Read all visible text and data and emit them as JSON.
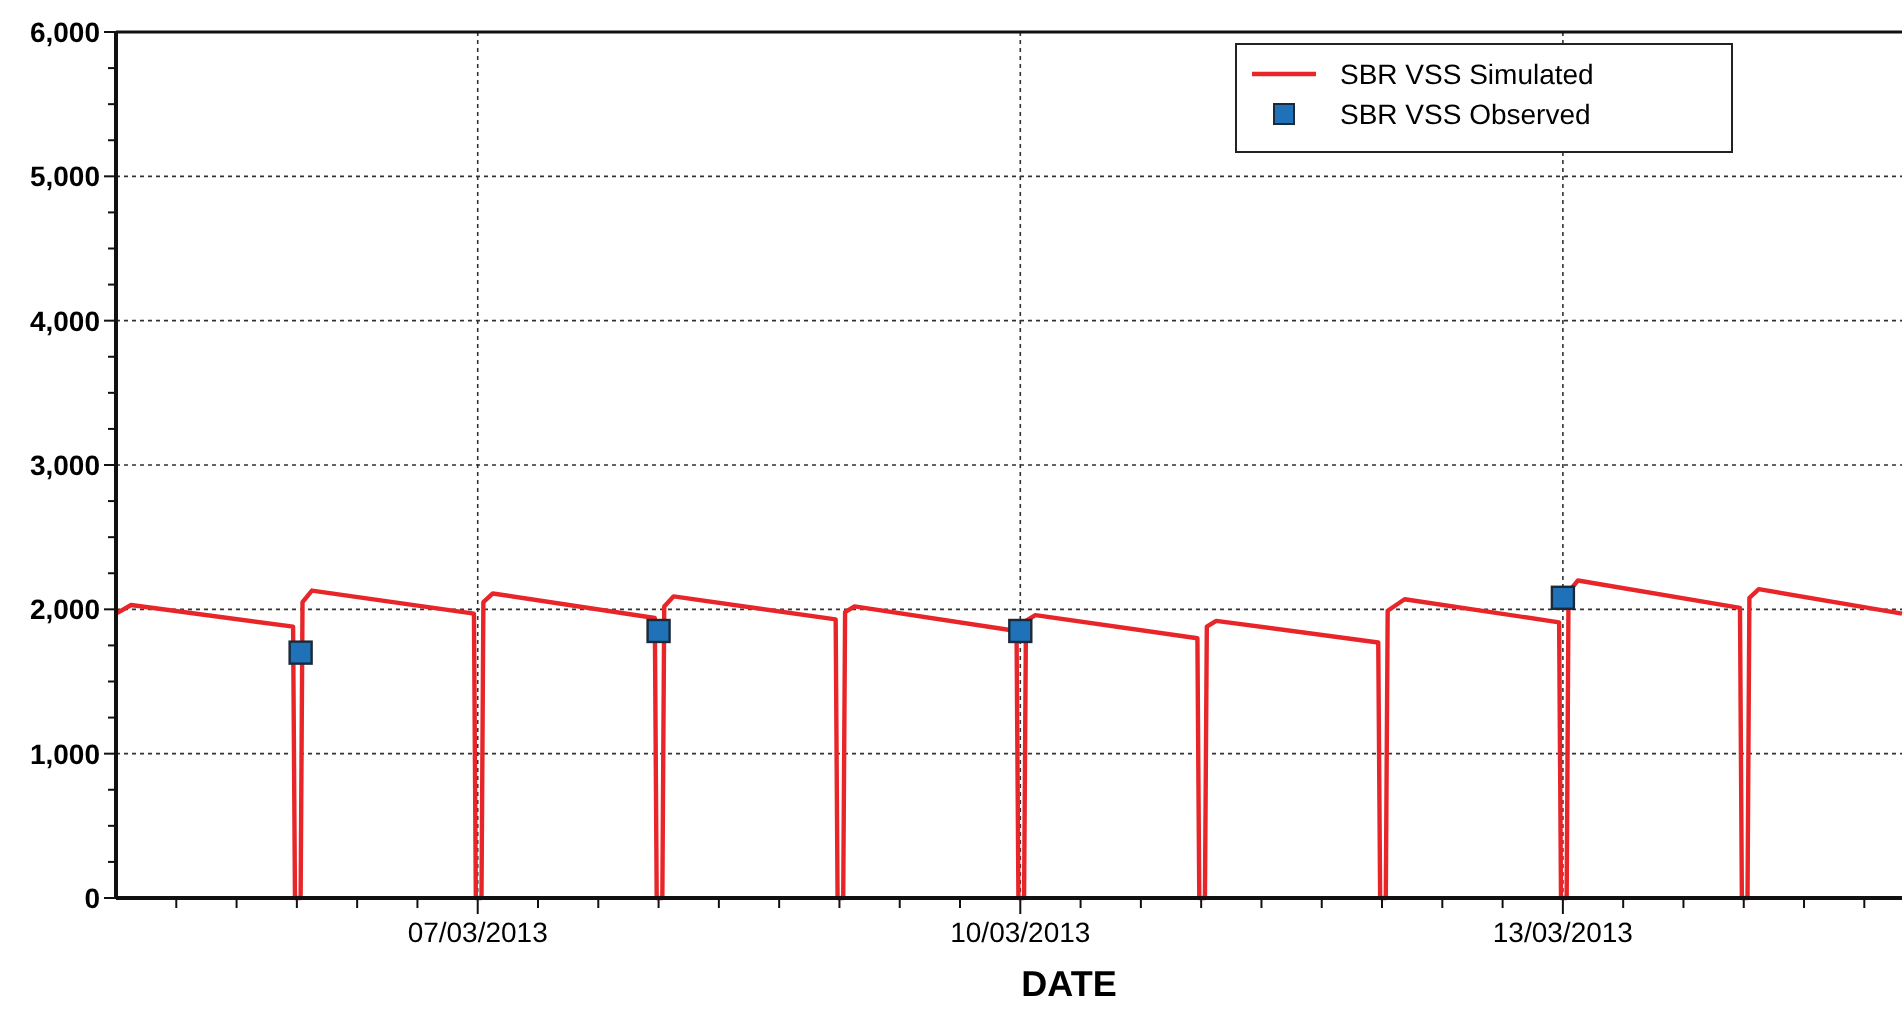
{
  "chart_data": {
    "type": "line",
    "xlabel": "DATE",
    "xlim": [
      "2013-03-05T00:00",
      "2013-03-14T21:00"
    ],
    "xticks": [
      {
        "value": "2013-03-05T08:00",
        "label": null
      },
      {
        "value": "2013-03-05T16:00",
        "label": null
      },
      {
        "value": "2013-03-06T00:00",
        "label": null
      },
      {
        "value": "2013-03-06T08:00",
        "label": null
      },
      {
        "value": "2013-03-06T16:00",
        "label": null
      },
      {
        "value": "2013-03-07T00:00",
        "label": "07/03/2013"
      },
      {
        "value": "2013-03-07T08:00",
        "label": null
      },
      {
        "value": "2013-03-07T16:00",
        "label": null
      },
      {
        "value": "2013-03-08T00:00",
        "label": null
      },
      {
        "value": "2013-03-08T08:00",
        "label": null
      },
      {
        "value": "2013-03-08T16:00",
        "label": null
      },
      {
        "value": "2013-03-09T00:00",
        "label": null
      },
      {
        "value": "2013-03-09T08:00",
        "label": null
      },
      {
        "value": "2013-03-09T16:00",
        "label": null
      },
      {
        "value": "2013-03-10T00:00",
        "label": "10/03/2013"
      },
      {
        "value": "2013-03-10T08:00",
        "label": null
      },
      {
        "value": "2013-03-10T16:00",
        "label": null
      },
      {
        "value": "2013-03-11T00:00",
        "label": null
      },
      {
        "value": "2013-03-11T08:00",
        "label": null
      },
      {
        "value": "2013-03-11T16:00",
        "label": null
      },
      {
        "value": "2013-03-12T00:00",
        "label": null
      },
      {
        "value": "2013-03-12T08:00",
        "label": null
      },
      {
        "value": "2013-03-12T16:00",
        "label": null
      },
      {
        "value": "2013-03-13T00:00",
        "label": "13/03/2013"
      },
      {
        "value": "2013-03-13T08:00",
        "label": null
      },
      {
        "value": "2013-03-13T16:00",
        "label": null
      },
      {
        "value": "2013-03-14T00:00",
        "label": null
      },
      {
        "value": "2013-03-14T08:00",
        "label": null
      },
      {
        "value": "2013-03-14T16:00",
        "label": null
      }
    ],
    "ylim": [
      0,
      6000
    ],
    "yticks": [
      0,
      {
        "value": 250,
        "label": null
      },
      {
        "value": 500,
        "label": null
      },
      {
        "value": 750,
        "label": null
      },
      {
        "value": 1000,
        "label": "1,000"
      },
      {
        "value": 1250,
        "label": null
      },
      {
        "value": 1500,
        "label": null
      },
      {
        "value": 1750,
        "label": null
      },
      {
        "value": 2000,
        "label": "2,000"
      },
      {
        "value": 2250,
        "label": null
      },
      {
        "value": 2500,
        "label": null
      },
      {
        "value": 2750,
        "label": null
      },
      {
        "value": 3000,
        "label": "3,000"
      },
      {
        "value": 3250,
        "label": null
      },
      {
        "value": 3500,
        "label": null
      },
      {
        "value": 3750,
        "label": null
      },
      {
        "value": 4000,
        "label": "4,000"
      },
      {
        "value": 4250,
        "label": null
      },
      {
        "value": 4500,
        "label": null
      },
      {
        "value": 4750,
        "label": null
      },
      {
        "value": 5000,
        "label": "5,000"
      },
      {
        "value": 5250,
        "label": null
      },
      {
        "value": 5500,
        "label": null
      },
      {
        "value": 5750,
        "label": null
      },
      {
        "value": 6000,
        "label": "6,000"
      }
    ],
    "grid": true,
    "legend": "top right",
    "line_style": "solid",
    "series": [
      {
        "name": "SBR VSS Simulated",
        "marker": "none",
        "color": "#e8262a",
        "x": [
          "2013-03-05T00:00",
          "2013-03-05T02:00",
          "2013-03-05T23:30",
          "2013-03-05T23:45",
          "2013-03-06T00:30",
          "2013-03-06T00:45",
          "2013-03-06T02:00",
          "2013-03-06T23:30",
          "2013-03-06T23:45",
          "2013-03-07T00:30",
          "2013-03-07T00:45",
          "2013-03-07T02:00",
          "2013-03-07T23:30",
          "2013-03-07T23:45",
          "2013-03-08T00:30",
          "2013-03-08T00:45",
          "2013-03-08T02:00",
          "2013-03-08T23:30",
          "2013-03-08T23:45",
          "2013-03-09T00:30",
          "2013-03-09T00:45",
          "2013-03-09T02:00",
          "2013-03-09T23:30",
          "2013-03-09T23:45",
          "2013-03-10T00:30",
          "2013-03-10T00:45",
          "2013-03-10T02:00",
          "2013-03-10T23:30",
          "2013-03-10T23:45",
          "2013-03-11T00:30",
          "2013-03-11T00:45",
          "2013-03-11T02:00",
          "2013-03-11T23:30",
          "2013-03-11T23:45",
          "2013-03-12T00:30",
          "2013-03-12T00:45",
          "2013-03-12T03:00",
          "2013-03-12T23:30",
          "2013-03-12T23:45",
          "2013-03-13T00:30",
          "2013-03-13T00:45",
          "2013-03-13T02:00",
          "2013-03-13T23:30",
          "2013-03-13T23:45",
          "2013-03-14T00:30",
          "2013-03-14T00:45",
          "2013-03-14T02:00",
          "2013-03-14T21:00"
        ],
        "values": [
          1970,
          2030,
          1880,
          0,
          0,
          2050,
          2130,
          1970,
          0,
          0,
          2050,
          2110,
          1940,
          0,
          0,
          2020,
          2090,
          1930,
          0,
          0,
          1980,
          2020,
          1850,
          0,
          0,
          1920,
          1960,
          1800,
          0,
          0,
          1880,
          1920,
          1770,
          0,
          0,
          1990,
          2070,
          1910,
          0,
          0,
          2120,
          2200,
          2010,
          0,
          0,
          2080,
          2140,
          1970
        ]
      },
      {
        "name": "SBR VSS Observed",
        "type": "scatter",
        "marker": "square",
        "color": "#1f72b8",
        "x": [
          "2013-03-06T00:30",
          "2013-03-08T00:00",
          "2013-03-10T00:00",
          "2013-03-13T00:00"
        ],
        "values": [
          1700,
          1850,
          1850,
          2080
        ]
      }
    ]
  }
}
